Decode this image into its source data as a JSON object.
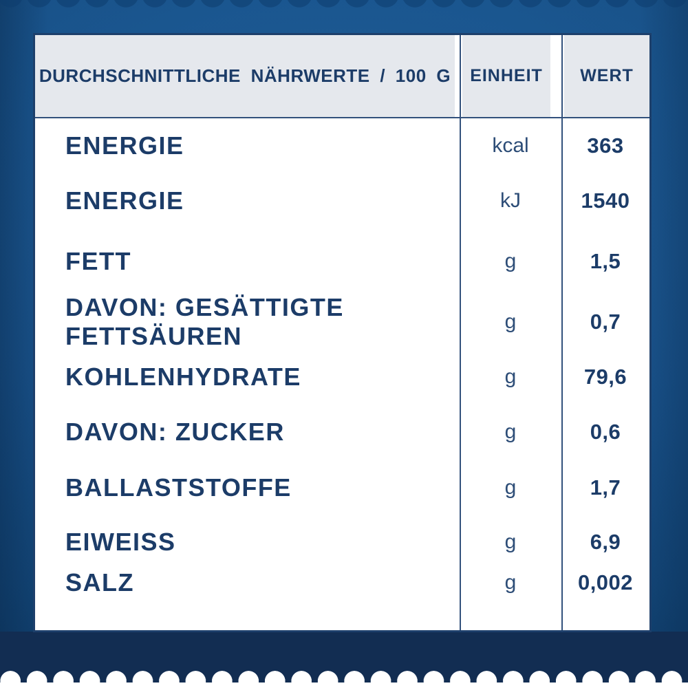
{
  "table": {
    "header": {
      "col1": "DURCHSCHNITTLICHE NÄHRWERTE / 100 G",
      "col2": "EINHEIT",
      "col3": "WERT"
    },
    "rows": [
      {
        "label": "ENERGIE",
        "unit": "kcal",
        "value": "363"
      },
      {
        "label": "ENERGIE",
        "unit": "kJ",
        "value": "1540"
      },
      {
        "label": "FETT",
        "unit": "g",
        "value": "1,5"
      },
      {
        "label": "DAVON: GESÄTTIGTE FETTSÄUREN",
        "unit": "g",
        "value": "0,7"
      },
      {
        "label": "KOHLENHYDRATE",
        "unit": "g",
        "value": "79,6"
      },
      {
        "label": "DAVON: ZUCKER",
        "unit": "g",
        "value": "0,6"
      },
      {
        "label": "BALLASTSTOFFE",
        "unit": "g",
        "value": "1,7"
      },
      {
        "label": "EIWEISS",
        "unit": "g",
        "value": "6,9"
      },
      {
        "label": "SALZ",
        "unit": "g",
        "value": "0,002"
      }
    ]
  },
  "colors": {
    "text_navy": "#1c3c68",
    "header_fill": "#e5e8ed",
    "card_background": "#ffffff",
    "card_border": "#1d3f6b",
    "background_blue": "#17528a",
    "bottom_band_navy": "#122d52",
    "scallop_white": "#ffffff"
  }
}
